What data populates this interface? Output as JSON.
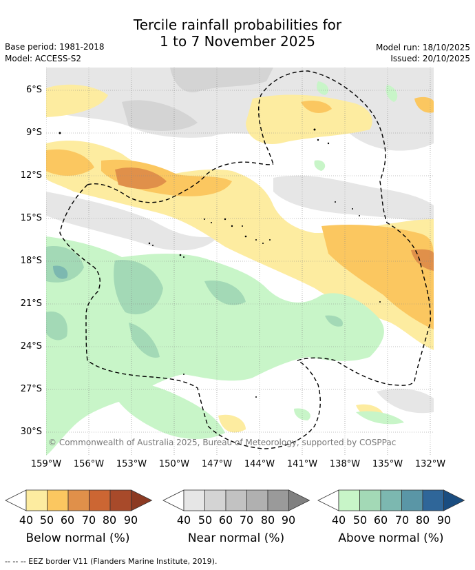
{
  "title": {
    "line1": "Tercile rainfall probabilities for",
    "line2": "1 to 7 November 2025"
  },
  "meta": {
    "base_period": "Base period: 1981-2018",
    "model": "Model: ACCESS-S2",
    "model_run": "Model run: 18/10/2025",
    "issued": "Issued: 20/10/2025"
  },
  "axes": {
    "lat_labels": [
      "6°S",
      "9°S",
      "12°S",
      "15°S",
      "18°S",
      "21°S",
      "24°S",
      "27°S",
      "30°S"
    ],
    "lon_labels": [
      "159°W",
      "156°W",
      "153°W",
      "150°W",
      "147°W",
      "144°W",
      "141°W",
      "138°W",
      "135°W",
      "132°W"
    ]
  },
  "copyright": "© Commonwealth of Australia 2025, Bureau of Meteorology, supported by COSPPac",
  "legend": {
    "below": {
      "title": "Below normal (%)",
      "ticks": [
        "40",
        "50",
        "60",
        "70",
        "80",
        "90"
      ],
      "colors": [
        "#ffffff",
        "#fdeca0",
        "#fbc760",
        "#e0904a",
        "#cc6633",
        "#a84a2a",
        "#8c3a22"
      ]
    },
    "near": {
      "title": "Near normal (%)",
      "ticks": [
        "40",
        "50",
        "60",
        "70",
        "80",
        "90"
      ],
      "colors": [
        "#ffffff",
        "#e6e6e6",
        "#d4d4d4",
        "#c2c2c2",
        "#b0b0b0",
        "#9a9a9a",
        "#808080"
      ]
    },
    "above": {
      "title": "Above normal (%)",
      "ticks": [
        "40",
        "50",
        "60",
        "70",
        "80",
        "90"
      ],
      "colors": [
        "#ffffff",
        "#c8f5c8",
        "#a3d9b6",
        "#7cb8b0",
        "#5a96a6",
        "#2f6699",
        "#1a4d80"
      ]
    }
  },
  "footer": "--  --  -- EEZ border V11 (Flanders Marine Institute, 2019)."
}
